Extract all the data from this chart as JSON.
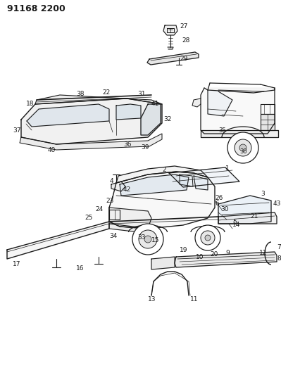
{
  "title": "91168 2200",
  "bg": "#ffffff",
  "lc": "#1a1a1a",
  "fig_w": 3.99,
  "fig_h": 5.33,
  "dpi": 100
}
